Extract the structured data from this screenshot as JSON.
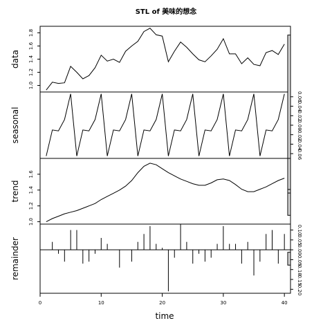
{
  "chart_data": {
    "type": "line",
    "title": "STL of 美味的想念",
    "xlabel": "time",
    "x": [
      1,
      2,
      3,
      4,
      5,
      6,
      7,
      8,
      9,
      10,
      11,
      12,
      13,
      14,
      15,
      16,
      17,
      18,
      19,
      20,
      21,
      22,
      23,
      24,
      25,
      26,
      27,
      28,
      29,
      30,
      31,
      32,
      33,
      34,
      35,
      36,
      37,
      38,
      39,
      40
    ],
    "x_ticks": [
      "0",
      "10",
      "20",
      "30",
      "40"
    ],
    "xlim": [
      0,
      41
    ],
    "panels": [
      {
        "name": "data",
        "type": "line",
        "ylim": [
          0.9,
          1.9
        ],
        "ticks": [
          "1.0",
          "1.2",
          "1.4",
          "1.6",
          "1.8"
        ],
        "values": [
          0.93,
          1.05,
          1.03,
          1.04,
          1.29,
          1.2,
          1.1,
          1.15,
          1.27,
          1.46,
          1.37,
          1.4,
          1.35,
          1.52,
          1.6,
          1.67,
          1.82,
          1.87,
          1.77,
          1.75,
          1.36,
          1.52,
          1.66,
          1.58,
          1.48,
          1.39,
          1.36,
          1.45,
          1.55,
          1.71,
          1.48,
          1.48,
          1.33,
          1.42,
          1.32,
          1.3,
          1.5,
          1.53,
          1.47,
          1.63
        ]
      },
      {
        "name": "seasonal",
        "type": "line",
        "ylim": [
          -0.07,
          0.07
        ],
        "ticks": [
          "-0.06",
          "-0.04",
          "-0.02",
          "0.00",
          "0.02",
          "0.04",
          "0.06"
        ],
        "values": [
          -0.065,
          -0.01,
          -0.012,
          0.012,
          0.066,
          -0.065,
          -0.01,
          -0.012,
          0.012,
          0.066,
          -0.065,
          -0.01,
          -0.012,
          0.012,
          0.066,
          -0.065,
          -0.01,
          -0.012,
          0.012,
          0.066,
          -0.065,
          -0.01,
          -0.012,
          0.012,
          0.066,
          -0.065,
          -0.01,
          -0.012,
          0.012,
          0.066,
          -0.065,
          -0.01,
          -0.012,
          0.012,
          0.066,
          -0.065,
          -0.01,
          -0.012,
          0.012,
          0.066
        ]
      },
      {
        "name": "trend",
        "type": "line",
        "ylim": [
          0.97,
          1.8
        ],
        "ticks": [
          "1.0",
          "1.2",
          "1.4",
          "1.6"
        ],
        "values": [
          1.0,
          1.04,
          1.07,
          1.1,
          1.12,
          1.14,
          1.17,
          1.2,
          1.23,
          1.28,
          1.32,
          1.36,
          1.4,
          1.45,
          1.52,
          1.62,
          1.7,
          1.74,
          1.72,
          1.67,
          1.62,
          1.58,
          1.54,
          1.51,
          1.48,
          1.46,
          1.46,
          1.49,
          1.53,
          1.54,
          1.52,
          1.47,
          1.41,
          1.38,
          1.38,
          1.41,
          1.44,
          1.48,
          1.52,
          1.55
        ]
      },
      {
        "name": "remainder",
        "type": "bar",
        "ylim": [
          -0.22,
          0.13
        ],
        "ticks": [
          "-0.20",
          "-0.15",
          "-0.10",
          "-0.05",
          "0.00",
          "0.05",
          "0.10"
        ],
        "values": [
          0,
          0.04,
          -0.02,
          -0.06,
          0.1,
          0.1,
          -0.07,
          -0.06,
          -0.02,
          0.06,
          0.03,
          0.0,
          -0.09,
          0.0,
          -0.06,
          0.04,
          0.08,
          0.12,
          0.03,
          0.01,
          -0.21,
          -0.04,
          0.13,
          0.04,
          -0.07,
          -0.02,
          -0.06,
          -0.04,
          0.03,
          0.12,
          0.03,
          0.03,
          -0.07,
          0.04,
          -0.13,
          -0.06,
          0.08,
          0.1,
          -0.07,
          0.08
        ]
      }
    ],
    "range_bars": [
      0.03,
      0.38,
      0.045,
      0.065
    ]
  }
}
